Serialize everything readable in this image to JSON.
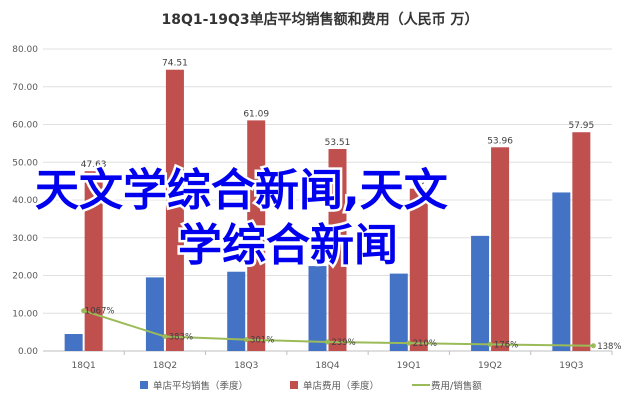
{
  "chart_data": {
    "type": "bar",
    "title": "18Q1-19Q3单店平均销售额和费用（人民币 万）",
    "categories": [
      "18Q1",
      "18Q2",
      "18Q3",
      "18Q4",
      "19Q1",
      "19Q2",
      "19Q3"
    ],
    "ylim": [
      0,
      80
    ],
    "yticks": [
      "0.00",
      "10.00",
      "20.00",
      "30.00",
      "40.00",
      "50.00",
      "60.00",
      "70.00",
      "80.00"
    ],
    "grid": true,
    "legend_position": "bottom",
    "series": [
      {
        "name": "单店平均销售（季度）",
        "type": "bar",
        "color": "#4472c4",
        "values": [
          4.5,
          19.5,
          21.0,
          22.5,
          20.5,
          30.5,
          42.0
        ],
        "labels": [
          "",
          "",
          "",
          "",
          "",
          "",
          ""
        ]
      },
      {
        "name": "单店费用（季度）",
        "type": "bar",
        "color": "#c0504d",
        "values": [
          47.63,
          74.51,
          61.09,
          53.51,
          43.0,
          53.96,
          57.95
        ],
        "labels": [
          "47.63",
          "74.51",
          "61.09",
          "53.51",
          "43",
          "53.96",
          "57.95"
        ]
      },
      {
        "name": "费用/销售额",
        "type": "line",
        "color": "#9bbb59",
        "values": [
          10.67,
          3.83,
          3.01,
          2.39,
          2.1,
          1.76,
          1.38
        ],
        "labels": [
          "1067%",
          "383%",
          "301%",
          "239%",
          "210%",
          "176%",
          "138%"
        ]
      }
    ],
    "annotations": [
      {
        "text": "天文学综合新闻,天文",
        "role": "overlay"
      },
      {
        "text": "学综合新闻",
        "role": "overlay"
      }
    ]
  }
}
